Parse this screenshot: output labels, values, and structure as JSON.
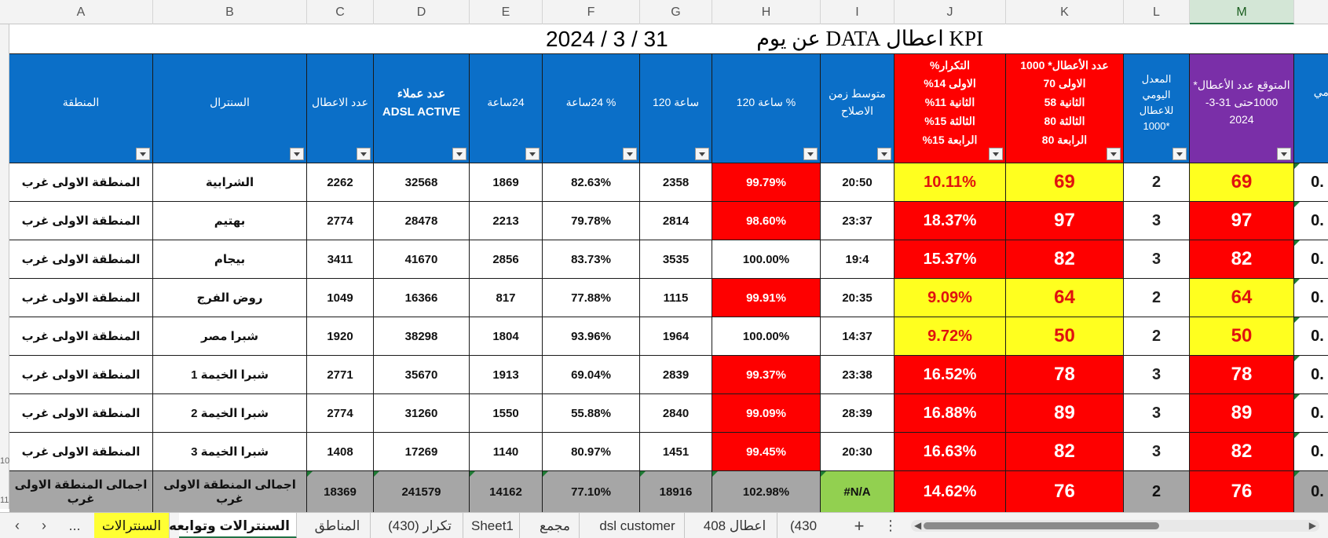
{
  "columns": [
    "A",
    "B",
    "C",
    "D",
    "E",
    "F",
    "G",
    "H",
    "I",
    "J",
    "K",
    "L",
    "M"
  ],
  "selected_column": "M",
  "row_numbers": {
    "r10": "10",
    "r11": "11"
  },
  "title": {
    "kpi": "KPI اعطال DATA عن يوم",
    "date": "2024 / 3 / 31"
  },
  "headers": {
    "region": "المنطقة",
    "central": "السنترال",
    "faults": "عدد الاعطال",
    "adsl": "عدد عملاء\nADSL ACTIVE",
    "h24": "24ساعة",
    "h24pct": "% 24ساعة",
    "h120": "ساعة 120",
    "h120pct": "% ساعة 120",
    "avg_repair": "متوسط زمن\nالاصلاح",
    "repeat": "التكرار%\nالاولى 14%\nالثانية 11%\nالثالثة 15%\nالرابعة 15%",
    "faults_per_1000": "عدد الأعطال* 1000\nالاولى 70\nالثانية 58\nالثالثة 80\nالرابعة 80",
    "daily_rate": "المعدل\nاليومي\nللاعطال\n*1000",
    "expected": "المتوقع عدد الأعطال*\n1000حتى 31-3-\n2024",
    "next_partial": "يومي"
  },
  "rows": [
    {
      "region": "المنطقة الاولى غرب",
      "central": "الشرابية",
      "faults": "2262",
      "adsl": "32568",
      "h24": "1869",
      "h24pct": "82.63%",
      "h120": "2358",
      "h120pct": "99.79%",
      "avg_repair": "20:50",
      "repeat": "10.11%",
      "per1000": "69",
      "daily": "2",
      "expected": "69",
      "next": "0."
    },
    {
      "region": "المنطقة الاولى غرب",
      "central": "بهتيم",
      "faults": "2774",
      "adsl": "28478",
      "h24": "2213",
      "h24pct": "79.78%",
      "h120": "2814",
      "h120pct": "98.60%",
      "avg_repair": "23:37",
      "repeat": "18.37%",
      "per1000": "97",
      "daily": "3",
      "expected": "97",
      "next": "0."
    },
    {
      "region": "المنطقة الاولى غرب",
      "central": "بيجام",
      "faults": "3411",
      "adsl": "41670",
      "h24": "2856",
      "h24pct": "83.73%",
      "h120": "3535",
      "h120pct": "100.00%",
      "avg_repair": "19:4",
      "repeat": "15.37%",
      "per1000": "82",
      "daily": "3",
      "expected": "82",
      "next": "0."
    },
    {
      "region": "المنطقة الاولى غرب",
      "central": "روض الفرج",
      "faults": "1049",
      "adsl": "16366",
      "h24": "817",
      "h24pct": "77.88%",
      "h120": "1115",
      "h120pct": "99.91%",
      "avg_repair": "20:35",
      "repeat": "9.09%",
      "per1000": "64",
      "daily": "2",
      "expected": "64",
      "next": "0."
    },
    {
      "region": "المنطقة الاولى غرب",
      "central": "شبرا مصر",
      "faults": "1920",
      "adsl": "38298",
      "h24": "1804",
      "h24pct": "93.96%",
      "h120": "1964",
      "h120pct": "100.00%",
      "avg_repair": "14:37",
      "repeat": "9.72%",
      "per1000": "50",
      "daily": "2",
      "expected": "50",
      "next": "0."
    },
    {
      "region": "المنطقة الاولى غرب",
      "central": "شبرا الخيمة 1",
      "faults": "2771",
      "adsl": "35670",
      "h24": "1913",
      "h24pct": "69.04%",
      "h120": "2839",
      "h120pct": "99.37%",
      "avg_repair": "23:38",
      "repeat": "16.52%",
      "per1000": "78",
      "daily": "3",
      "expected": "78",
      "next": "0."
    },
    {
      "region": "المنطقة الاولى غرب",
      "central": "شبرا الخيمة 2",
      "faults": "2774",
      "adsl": "31260",
      "h24": "1550",
      "h24pct": "55.88%",
      "h120": "2840",
      "h120pct": "99.09%",
      "avg_repair": "28:39",
      "repeat": "16.88%",
      "per1000": "89",
      "daily": "3",
      "expected": "89",
      "next": "0."
    },
    {
      "region": "المنطقة الاولى غرب",
      "central": "شبرا الخيمة 3",
      "faults": "1408",
      "adsl": "17269",
      "h24": "1140",
      "h24pct": "80.97%",
      "h120": "1451",
      "h120pct": "99.45%",
      "avg_repair": "20:30",
      "repeat": "16.63%",
      "per1000": "82",
      "daily": "3",
      "expected": "82",
      "next": "0."
    }
  ],
  "total": {
    "region": "اجمالى المنطقة الاولى غرب",
    "central": "اجمالى المنطقة الاولى غرب",
    "faults": "18369",
    "adsl": "241579",
    "h24": "14162",
    "h24pct": "77.10%",
    "h120": "18916",
    "h120pct": "102.98%",
    "avg_repair": "#N/A",
    "repeat": "14.62%",
    "per1000": "76",
    "daily": "2",
    "expected": "76",
    "next": "0."
  },
  "tabs": {
    "ellipsis_left": "...",
    "t1": "السنترالات",
    "t2": "السنترالات وتوابعه",
    "t3": "المناطق",
    "t4": "تكرار (430)",
    "t5": "Sheet1",
    "t6": "مجمع",
    "t7": "dsl customer",
    "t8": "اعطال 408",
    "t9": "(430",
    "add": "+",
    "more": "⋮"
  },
  "colors": {
    "blue": "#0b6fc8",
    "purple": "#7a2fa8",
    "red": "#fe0000",
    "yellow": "#ffff1f",
    "gray": "#a6a6a6",
    "green": "#92d050"
  }
}
